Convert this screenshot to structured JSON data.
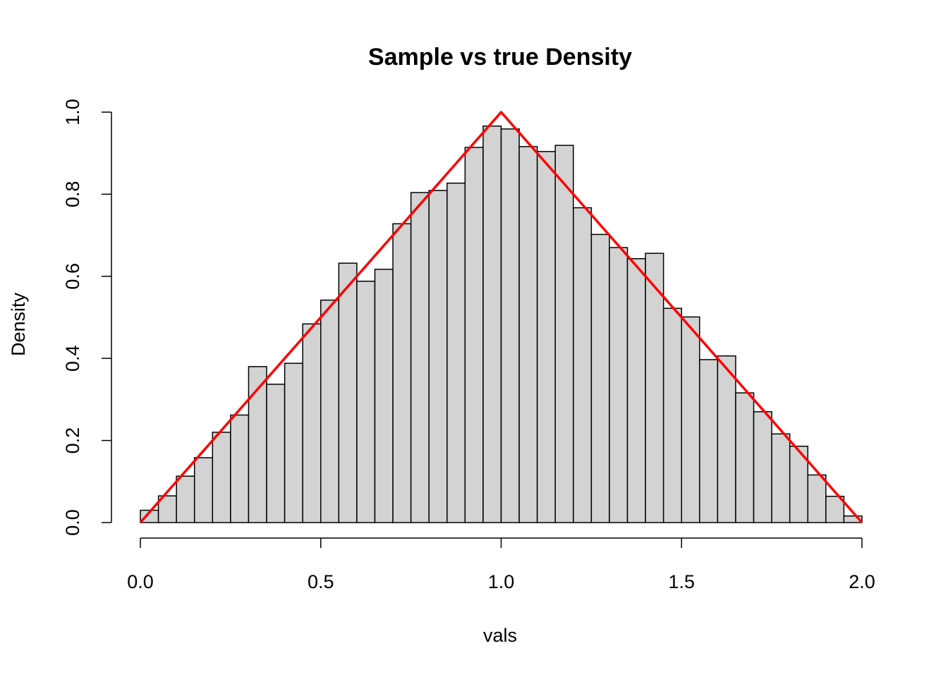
{
  "chart_data": {
    "type": "bar",
    "title": "Sample vs true Density",
    "xlabel": "vals",
    "ylabel": "Density",
    "xlim": [
      0,
      2
    ],
    "ylim": [
      0,
      1
    ],
    "x_ticks": [
      "0.0",
      "0.5",
      "1.0",
      "1.5",
      "2.0"
    ],
    "y_ticks": [
      "0.0",
      "0.2",
      "0.4",
      "0.6",
      "0.8",
      "1.0"
    ],
    "bin_width": 0.05,
    "bin_edges_start": 0,
    "histogram_values": [
      0.03,
      0.065,
      0.113,
      0.158,
      0.22,
      0.262,
      0.38,
      0.337,
      0.388,
      0.484,
      0.542,
      0.632,
      0.588,
      0.617,
      0.728,
      0.804,
      0.809,
      0.827,
      0.914,
      0.966,
      0.959,
      0.916,
      0.904,
      0.919,
      0.767,
      0.702,
      0.67,
      0.643,
      0.656,
      0.522,
      0.501,
      0.397,
      0.406,
      0.316,
      0.27,
      0.216,
      0.186,
      0.116,
      0.064,
      0.016
    ],
    "true_density": {
      "x": [
        0,
        1,
        2
      ],
      "y": [
        0,
        1,
        0
      ]
    },
    "colors": {
      "bar_fill": "#d3d3d3",
      "bar_border": "#000000",
      "density_line": "#ff0000"
    },
    "grid": false
  }
}
